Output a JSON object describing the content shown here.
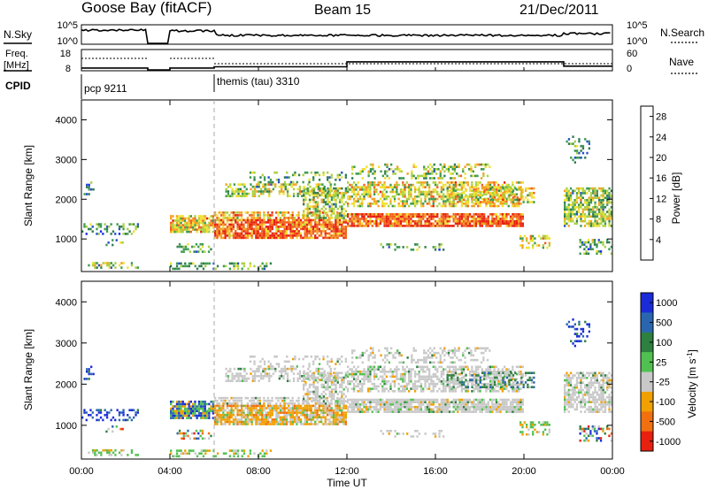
{
  "header": {
    "station": "Goose Bay (fitACF)",
    "beam": "Beam 15",
    "date": "21/Dec/2011"
  },
  "params_panel": {
    "nsky_label": "N.Sky",
    "nsky_ticks": [
      "10^5",
      "10^0"
    ],
    "nsearch_label": "N.Search",
    "nsearch_ticks": [
      "10^5",
      "10^0"
    ],
    "freq_label": "Freq.",
    "freq_unit": "[MHz]",
    "freq_ticks": [
      "18",
      "8"
    ],
    "nave_label": "Nave",
    "nave_ticks": [
      "60",
      "0"
    ],
    "cpid_label": "CPID",
    "cpid_segments": [
      {
        "name": "pcp 9211",
        "start_hour": 0.0
      },
      {
        "name": "themis (tau) 3310",
        "start_hour": 6.0
      }
    ]
  },
  "chart_data": [
    {
      "type": "heatmap",
      "title": "",
      "xlabel": "Time UT",
      "ylabel": "Slant Range [km]",
      "x_ticks": [
        "00:00",
        "04:00",
        "08:00",
        "12:00",
        "16:00",
        "20:00",
        "00:00"
      ],
      "x_range_hours": [
        0,
        24
      ],
      "y_ticks": [
        1000,
        2000,
        3000,
        4000
      ],
      "ylim": [
        180,
        4500
      ],
      "colorbar": {
        "label": "Power [dB]",
        "ticks": [
          4,
          8,
          12,
          16,
          20,
          24,
          28
        ],
        "range": [
          0,
          30
        ],
        "colors": [
          "#1a2cf0",
          "#2850c8",
          "#2e7d4e",
          "#3c9a50",
          "#a8d040",
          "#f0e030",
          "#f5a020",
          "#f06020",
          "#e82010"
        ]
      }
    },
    {
      "type": "heatmap",
      "title": "",
      "xlabel": "Time UT",
      "ylabel": "Slant Range [km]",
      "x_ticks": [
        "00:00",
        "04:00",
        "08:00",
        "12:00",
        "16:00",
        "20:00",
        "00:00"
      ],
      "x_range_hours": [
        0,
        24
      ],
      "y_ticks": [
        1000,
        2000,
        3000,
        4000
      ],
      "ylim": [
        180,
        4500
      ],
      "colorbar": {
        "label": "Velocity [m s^-1]",
        "ticks": [
          "1000",
          "500",
          "100",
          "25",
          "-25",
          "-100",
          "-500",
          "-1000"
        ],
        "colors": [
          "#1a2cd8",
          "#2a66b0",
          "#2e8040",
          "#50c050",
          "#c8c8c8",
          "#f0a000",
          "#f07010",
          "#e82010"
        ]
      }
    }
  ]
}
